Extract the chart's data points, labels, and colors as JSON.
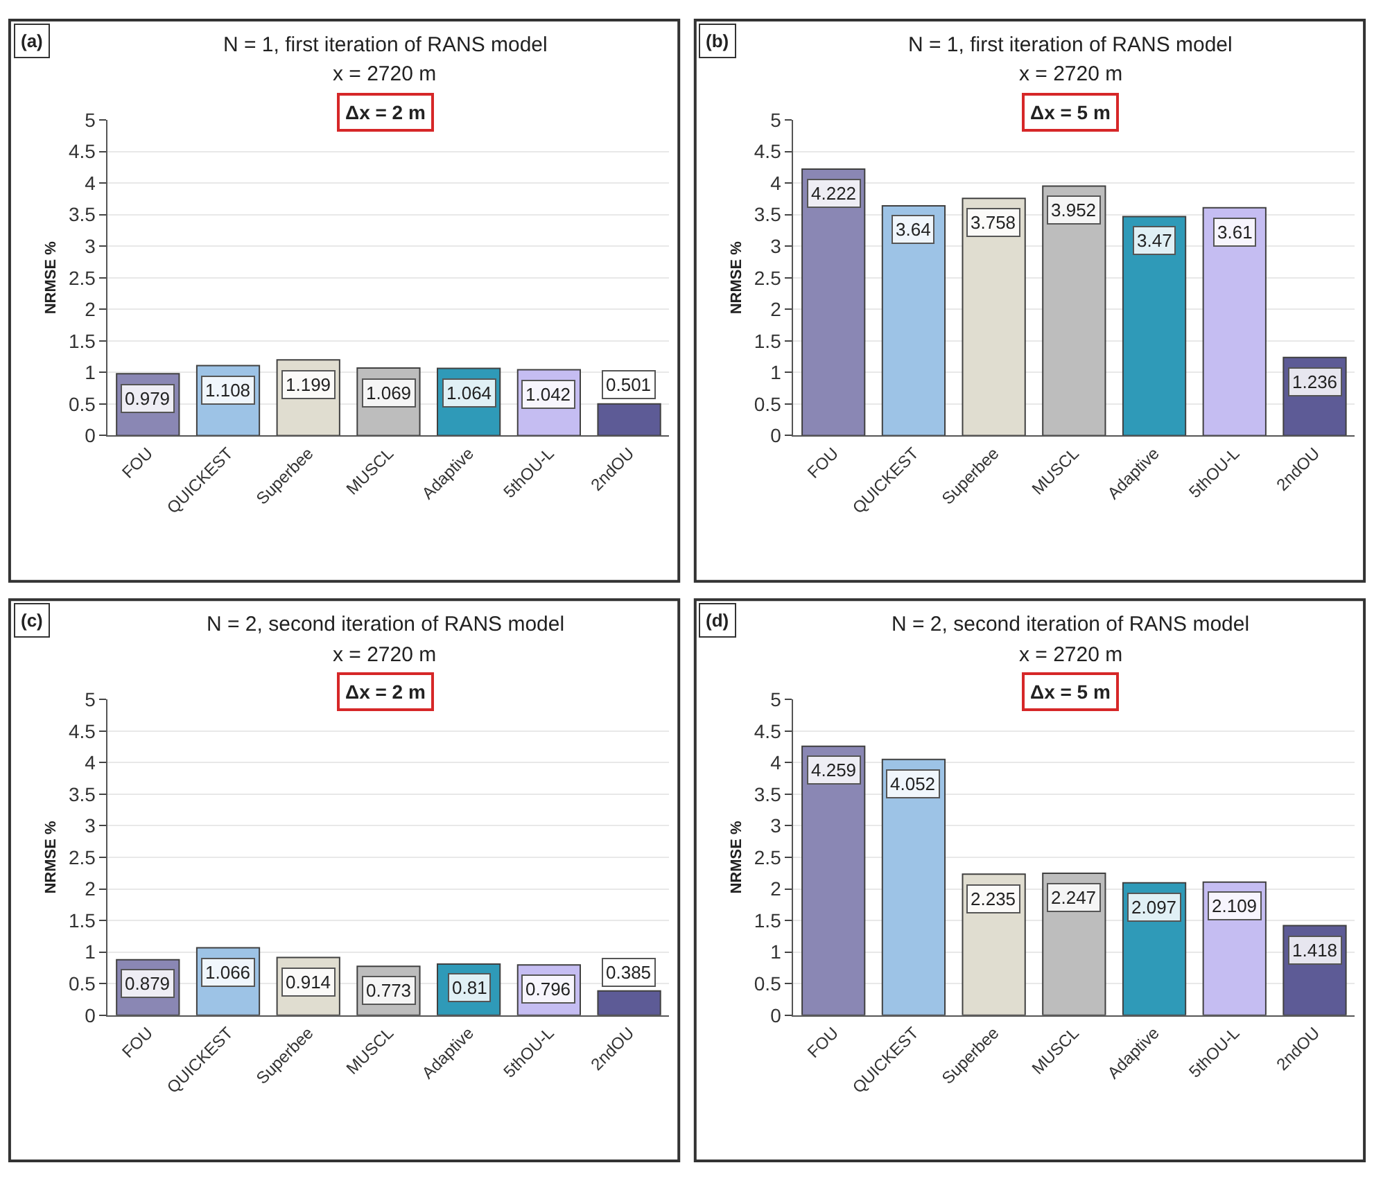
{
  "chart_data": [
    {
      "type": "bar",
      "title": "N = 1, first iteration of RANS model",
      "subtitle": "x = 2720 m",
      "annotations": [
        "(a)",
        "Δx = 2 m"
      ],
      "ylabel": "NRMSE %",
      "categories": [
        "FOU",
        "QUICKEST",
        "Superbee",
        "MUSCL",
        "Adaptive",
        "5thOU-L",
        "2ndOU"
      ],
      "values": [
        0.979,
        1.108,
        1.199,
        1.069,
        1.064,
        1.042,
        0.501
      ],
      "colors": [
        "#8a87b4",
        "#9dc3e6",
        "#e0ddd0",
        "#bdbdbd",
        "#2f9ab8",
        "#c5bdf2",
        "#5d5b96"
      ],
      "ylim": [
        0,
        5
      ],
      "yticks": [
        0,
        0.5,
        1,
        1.5,
        2,
        2.5,
        3,
        3.5,
        4,
        4.5,
        5
      ],
      "grid": "y",
      "data_labels": true
    },
    {
      "type": "bar",
      "title": "N = 1, first iteration of RANS model",
      "subtitle": "x = 2720 m",
      "annotations": [
        "(b)",
        "Δx = 5 m"
      ],
      "ylabel": "NRMSE %",
      "categories": [
        "FOU",
        "QUICKEST",
        "Superbee",
        "MUSCL",
        "Adaptive",
        "5thOU-L",
        "2ndOU"
      ],
      "values": [
        4.222,
        3.64,
        3.758,
        3.952,
        3.47,
        3.61,
        1.236
      ],
      "colors": [
        "#8a87b4",
        "#9dc3e6",
        "#e0ddd0",
        "#bdbdbd",
        "#2f9ab8",
        "#c5bdf2",
        "#5d5b96"
      ],
      "ylim": [
        0,
        5
      ],
      "yticks": [
        0,
        0.5,
        1,
        1.5,
        2,
        2.5,
        3,
        3.5,
        4,
        4.5,
        5
      ],
      "grid": "y",
      "data_labels": true
    },
    {
      "type": "bar",
      "title": "N = 2, second iteration of RANS model",
      "subtitle": "x = 2720 m",
      "annotations": [
        "(c)",
        "Δx = 2 m"
      ],
      "ylabel": "NRMSE %",
      "categories": [
        "FOU",
        "QUICKEST",
        "Superbee",
        "MUSCL",
        "Adaptive",
        "5thOU-L",
        "2ndOU"
      ],
      "values": [
        0.879,
        1.066,
        0.914,
        0.773,
        0.81,
        0.796,
        0.385
      ],
      "colors": [
        "#8a87b4",
        "#9dc3e6",
        "#e0ddd0",
        "#bdbdbd",
        "#2f9ab8",
        "#c5bdf2",
        "#5d5b96"
      ],
      "ylim": [
        0,
        5
      ],
      "yticks": [
        0,
        0.5,
        1,
        1.5,
        2,
        2.5,
        3,
        3.5,
        4,
        4.5,
        5
      ],
      "grid": "y",
      "data_labels": true
    },
    {
      "type": "bar",
      "title": "N = 2, second iteration of RANS model",
      "subtitle": "x = 2720 m",
      "annotations": [
        "(d)",
        "Δx = 5 m"
      ],
      "ylabel": "NRMSE %",
      "categories": [
        "FOU",
        "QUICKEST",
        "Superbee",
        "MUSCL",
        "Adaptive",
        "5thOU-L",
        "2ndOU"
      ],
      "values": [
        4.259,
        4.052,
        2.235,
        2.247,
        2.097,
        2.109,
        1.418
      ],
      "colors": [
        "#8a87b4",
        "#9dc3e6",
        "#e0ddd0",
        "#bdbdbd",
        "#2f9ab8",
        "#c5bdf2",
        "#5d5b96"
      ],
      "ylim": [
        0,
        5
      ],
      "yticks": [
        0,
        0.5,
        1,
        1.5,
        2,
        2.5,
        3,
        3.5,
        4,
        4.5,
        5
      ],
      "grid": "y",
      "data_labels": true
    }
  ]
}
